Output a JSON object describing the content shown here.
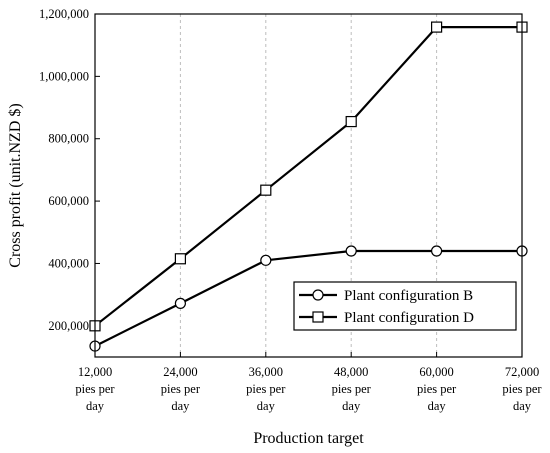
{
  "chart_data": {
    "type": "line",
    "xlabel": "Production target",
    "ylabel": "Cross profit (unit.NZD $)",
    "categories": [
      [
        "12,000",
        "pies per",
        "day"
      ],
      [
        "24,000",
        "pies per",
        "day"
      ],
      [
        "36,000",
        "pies per",
        "day"
      ],
      [
        "48,000",
        "pies per",
        "day"
      ],
      [
        "60,000",
        "pies per",
        "day"
      ],
      [
        "72,000",
        "pies per",
        "day"
      ]
    ],
    "ylim": [
      100000,
      1200000
    ],
    "yticks": [
      200000,
      400000,
      600000,
      800000,
      1000000,
      1200000
    ],
    "ytick_labels": [
      "200,000",
      "400,000",
      "600,000",
      "800,000",
      "1,000,000",
      "1,200,000"
    ],
    "legend_position": "lower-right",
    "grid": false,
    "series": [
      {
        "name": "Plant configuration B",
        "marker": "circle",
        "values": [
          135000,
          272000,
          410000,
          440000,
          440000,
          440000
        ]
      },
      {
        "name": "Plant configuration D",
        "marker": "square",
        "values": [
          200000,
          415000,
          635000,
          855000,
          1158000,
          1158000
        ]
      }
    ]
  }
}
